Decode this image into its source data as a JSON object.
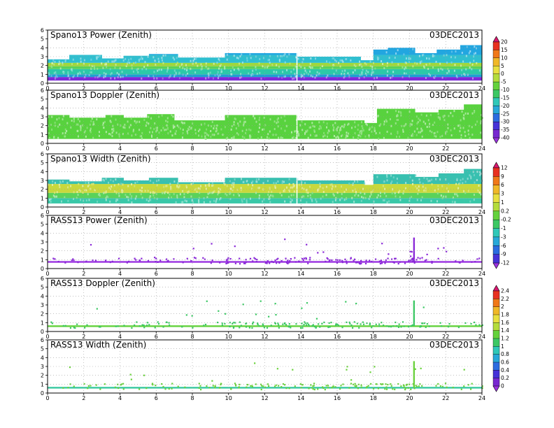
{
  "chart_data": {
    "type": "heatmap",
    "date": "03DEC2013",
    "x_ticks": [
      0,
      2,
      4,
      6,
      8,
      10,
      12,
      14,
      16,
      18,
      20,
      22,
      24
    ],
    "y_ticks": [
      0,
      1,
      2,
      3,
      4,
      5,
      6
    ],
    "xlim": [
      0,
      24
    ],
    "ylim": [
      0,
      6
    ],
    "grid": true,
    "panels": [
      {
        "title": "Spano13 Power (Zenith)",
        "top_segments": [
          [
            0,
            1.2,
            2.7
          ],
          [
            1.2,
            3.0,
            3.2
          ],
          [
            3.0,
            4.2,
            2.8
          ],
          [
            4.2,
            5.6,
            3.1
          ],
          [
            5.6,
            7.2,
            3.3
          ],
          [
            7.2,
            9.8,
            2.9
          ],
          [
            9.8,
            13.8,
            3.4
          ],
          [
            13.8,
            17.3,
            3.0
          ],
          [
            17.3,
            18.0,
            2.6
          ],
          [
            18.0,
            18.8,
            3.8
          ],
          [
            18.8,
            20.3,
            4.0
          ],
          [
            20.3,
            21.5,
            3.4
          ],
          [
            21.5,
            22.8,
            3.8
          ],
          [
            22.8,
            24.0,
            4.3
          ]
        ],
        "bands": [
          {
            "y0": 0.0,
            "y1": 0.3,
            "color": "#ffffff"
          },
          {
            "y0": 0.3,
            "y1": 0.7,
            "color": "#7d2ad8"
          },
          {
            "y0": 0.7,
            "y1": 1.0,
            "color": "#1ea0d2"
          },
          {
            "y0": 1.0,
            "y1": 1.6,
            "color": "#2cc8a8"
          },
          {
            "y0": 1.6,
            "y1": 1.9,
            "color": "#5ad25a"
          },
          {
            "y0": 1.9,
            "y1": 2.3,
            "color": "#9fd83c"
          },
          {
            "y0": 2.3,
            "y1": 3.2,
            "color": "#2fbfd0"
          },
          {
            "y0": 3.2,
            "y1": 5.0,
            "color": "#22a6e0"
          }
        ],
        "colorbar_index": 0
      },
      {
        "title": "Spano13 Doppler (Zenith)",
        "top_segments": [
          [
            0,
            1.2,
            3.2
          ],
          [
            1.2,
            3.2,
            2.9
          ],
          [
            3.2,
            4.2,
            3.2
          ],
          [
            4.2,
            5.5,
            2.9
          ],
          [
            5.5,
            7.0,
            3.3
          ],
          [
            7.0,
            9.8,
            2.6
          ],
          [
            9.8,
            13.8,
            3.2
          ],
          [
            13.8,
            17.5,
            2.6
          ],
          [
            17.5,
            18.2,
            2.3
          ],
          [
            18.2,
            20.3,
            3.9
          ],
          [
            20.3,
            21.6,
            3.5
          ],
          [
            21.6,
            23.0,
            3.8
          ],
          [
            23.0,
            24.0,
            4.4
          ]
        ],
        "bands": [
          {
            "y0": 0.0,
            "y1": 0.5,
            "color": "#ffffff"
          },
          {
            "y0": 0.5,
            "y1": 5.0,
            "color": "#58d23e"
          }
        ],
        "colorbar_index": 0
      },
      {
        "title": "Spano13 Width (Zenith)",
        "top_segments": [
          [
            0,
            1.2,
            3.1
          ],
          [
            1.2,
            3.0,
            2.9
          ],
          [
            3.0,
            4.2,
            3.3
          ],
          [
            4.2,
            5.6,
            3.0
          ],
          [
            5.6,
            7.2,
            3.3
          ],
          [
            7.2,
            9.8,
            2.8
          ],
          [
            9.8,
            13.8,
            3.3
          ],
          [
            13.8,
            17.5,
            3.0
          ],
          [
            17.5,
            18.0,
            2.5
          ],
          [
            18.0,
            20.3,
            3.7
          ],
          [
            20.3,
            21.6,
            3.4
          ],
          [
            21.6,
            23.0,
            3.8
          ],
          [
            23.0,
            24.0,
            4.3
          ]
        ],
        "bands": [
          {
            "y0": 0.0,
            "y1": 0.4,
            "color": "#ffffff"
          },
          {
            "y0": 0.4,
            "y1": 1.0,
            "color": "#39c8a8"
          },
          {
            "y0": 1.0,
            "y1": 1.6,
            "color": "#5ad25a"
          },
          {
            "y0": 1.6,
            "y1": 2.6,
            "color": "#c8d83c"
          },
          {
            "y0": 2.6,
            "y1": 5.0,
            "color": "#38c0b0"
          }
        ],
        "colorbar_index": 1
      },
      {
        "title": "RASS13 Power (Zenith)",
        "line_y": 0.75,
        "line_color": "#9a32e0",
        "dot_color": "#8a28d8",
        "spike_x": 20.2,
        "spike_top": 3.5,
        "colorbar_index": 1
      },
      {
        "title": "RASS13 Doppler (Zenith)",
        "line_y": 0.6,
        "line_color": "#64d23c",
        "dot_color": "#3cc864",
        "spike_x": 20.2,
        "spike_top": 3.5,
        "colorbar_index": 2
      },
      {
        "title": "RASS13 Width (Zenith)",
        "line_y": 0.6,
        "line_color": "#38c8a0",
        "dot_color": "#6ad23c",
        "spike_x": 20.2,
        "spike_top": 3.6,
        "colorbar_index": 2
      }
    ],
    "colorbars": [
      {
        "labels": [
          "20",
          "15",
          "10",
          "5",
          "0",
          "-5",
          "-10",
          "-15",
          "-20",
          "-25",
          "-30",
          "-35",
          "-40"
        ],
        "colors": [
          "#d8186e",
          "#e83020",
          "#f07818",
          "#f0b828",
          "#e8e040",
          "#b4dc3c",
          "#64d23c",
          "#3cc864",
          "#30c8b8",
          "#28a8d8",
          "#2c6ce0",
          "#4632d8",
          "#7828d0",
          "#9a32e0"
        ]
      },
      {
        "labels": [
          "12",
          "9",
          "6",
          "3",
          "1",
          "0.2",
          "-0.2",
          "-1",
          "-3",
          "-6",
          "-9",
          "-12"
        ],
        "colors": [
          "#d8186e",
          "#e83020",
          "#f07818",
          "#f0b828",
          "#e8e040",
          "#b4dc3c",
          "#64d23c",
          "#3cc864",
          "#30c8b8",
          "#28a8d8",
          "#2c6ce0",
          "#4632d8",
          "#9a32e0"
        ]
      },
      {
        "labels": [
          "2.4",
          "2.2",
          "2",
          "1.8",
          "1.6",
          "1.4",
          "1.2",
          "1",
          "0.8",
          "0.6",
          "0.4",
          "0.2",
          "0"
        ],
        "colors": [
          "#d8186e",
          "#e83020",
          "#f07818",
          "#f0b828",
          "#e8e040",
          "#b4dc3c",
          "#64d23c",
          "#3cc864",
          "#30c8b8",
          "#28a8d8",
          "#2c6ce0",
          "#4632d8",
          "#7828d0",
          "#9a32e0"
        ]
      }
    ]
  }
}
